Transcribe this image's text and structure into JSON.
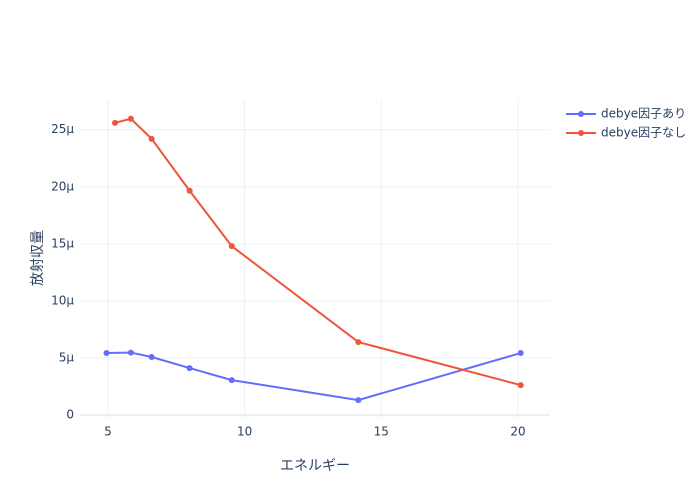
{
  "chart_data": {
    "type": "line",
    "x_label": "エネルギー",
    "y_label": "放射収量",
    "series": [
      {
        "name": "debye因子あり",
        "color": "#636efa",
        "x": [
          4.95,
          5.84,
          6.6,
          7.99,
          9.53,
          14.16,
          20.1
        ],
        "values": [
          5.44e-06,
          5.48e-06,
          5.09e-06,
          4.12e-06,
          3.07e-06,
          1.32e-06,
          5.44e-06
        ]
      },
      {
        "name": "debye因子なし",
        "color": "#ef553b",
        "x": [
          5.26,
          5.84,
          6.6,
          7.99,
          9.53,
          14.16,
          20.1
        ],
        "values": [
          2.56e-05,
          2.596e-05,
          2.42e-05,
          1.965e-05,
          1.48e-05,
          6.4e-06,
          2.63e-06
        ]
      }
    ],
    "xlim": [
      3.98,
      21.17
    ],
    "xticks": [
      5,
      10,
      15,
      20
    ],
    "ylim": [
      -2.5e-07,
      2.76e-05
    ],
    "yticks": [
      0,
      {
        "value": 5e-06,
        "label": "5μ"
      },
      {
        "value": 1e-05,
        "label": "10μ"
      },
      {
        "value": 1.5e-05,
        "label": "15μ"
      },
      {
        "value": 2e-05,
        "label": "20μ"
      },
      {
        "value": 2.5e-05,
        "label": "25μ"
      }
    ],
    "grid": true,
    "legend": "top-right"
  }
}
